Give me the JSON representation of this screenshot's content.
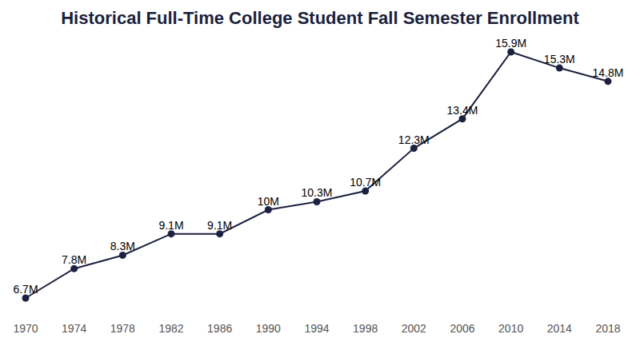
{
  "chart_data": {
    "type": "line",
    "title": "Historical Full-Time College Student Fall Semester Enrollment",
    "categories": [
      "1970",
      "1974",
      "1978",
      "1982",
      "1986",
      "1990",
      "1994",
      "1998",
      "2002",
      "2006",
      "2010",
      "2014",
      "2018"
    ],
    "values": [
      6.7,
      7.8,
      8.3,
      9.1,
      9.1,
      10,
      10.3,
      10.7,
      12.3,
      13.4,
      15.9,
      15.3,
      14.8
    ],
    "value_labels": [
      "6.7M",
      "7.8M",
      "8.3M",
      "9.1M",
      "9.1M",
      "10M",
      "10.3M",
      "10.7M",
      "12.3M",
      "13.4M",
      "15.9M",
      "15.3M",
      "14.8M"
    ],
    "ylim": [
      6.7,
      15.9
    ],
    "color": "#1c2140",
    "marker": "circle",
    "data_labels": true,
    "grid": false,
    "tick_labels": "x"
  }
}
